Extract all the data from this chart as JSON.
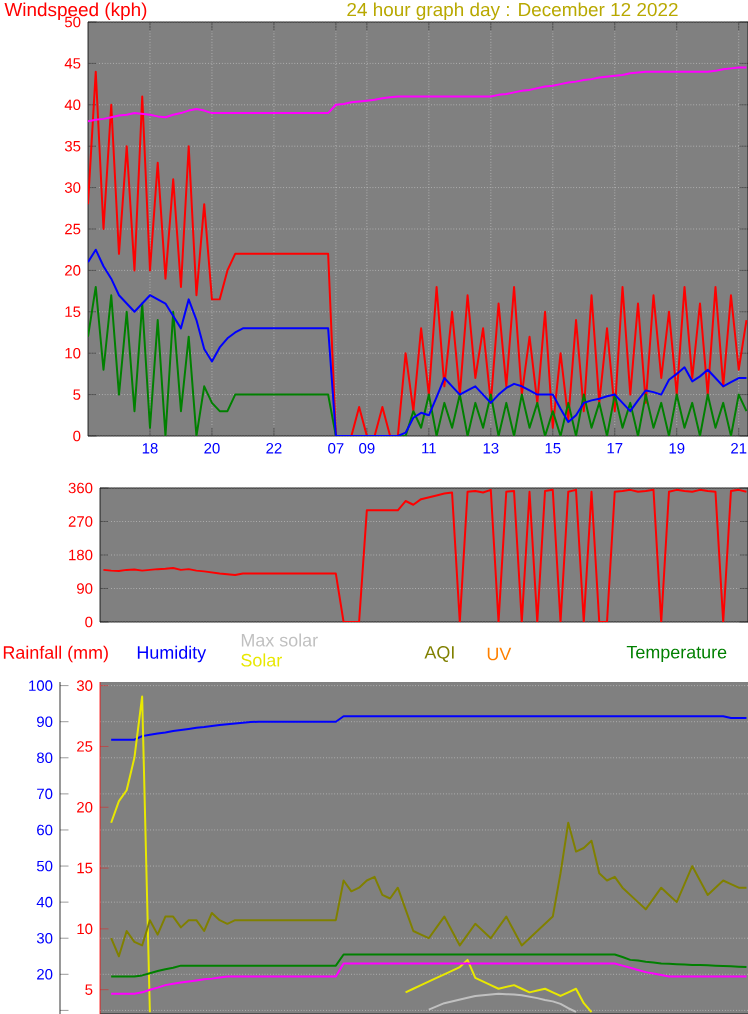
{
  "chart_data": [
    {
      "type": "line",
      "title": "24 hour graph day : December 12 2022",
      "ylabel": "Windspeed (kph)",
      "categories": [
        null,
        null,
        null,
        null,
        null,
        null,
        null,
        null,
        "18",
        null,
        null,
        null,
        null,
        null,
        null,
        null,
        "20",
        null,
        null,
        null,
        null,
        null,
        null,
        null,
        "22",
        null,
        null,
        null,
        null,
        null,
        null,
        null,
        "07",
        null,
        null,
        null,
        "09",
        null,
        null,
        null,
        null,
        null,
        null,
        null,
        "11",
        null,
        null,
        null,
        null,
        null,
        null,
        null,
        "13",
        null,
        null,
        null,
        null,
        null,
        null,
        null,
        "15",
        null,
        null,
        null,
        null,
        null,
        null,
        null,
        "17",
        null,
        null,
        null,
        null,
        null,
        null,
        null,
        "19",
        null,
        null,
        null,
        null,
        null,
        null,
        null,
        "21",
        null
      ],
      "ylim": [
        0,
        50
      ],
      "yticks": [
        0,
        5,
        10,
        15,
        20,
        25,
        30,
        35,
        40,
        45,
        50
      ],
      "grid": true,
      "series": [
        {
          "color": "#ff0000",
          "values": [
            28,
            44,
            25,
            40,
            22,
            35,
            20,
            41,
            20,
            33,
            19,
            31,
            18,
            35,
            17,
            28,
            16.5,
            16.5,
            20,
            22,
            22,
            22,
            22,
            22,
            22,
            22,
            22,
            22,
            22,
            22,
            22,
            22,
            0,
            0,
            0,
            3.5,
            0,
            0,
            3.5,
            0,
            0,
            10,
            3,
            13,
            5,
            18,
            6,
            15,
            5,
            17,
            7,
            13,
            4,
            16,
            6,
            18,
            5,
            12,
            4,
            15,
            1,
            10,
            2,
            14,
            3,
            17,
            4,
            13,
            3,
            18,
            5,
            16,
            4,
            17,
            7,
            15,
            5,
            18,
            7,
            16,
            5,
            18,
            6,
            17,
            8,
            14
          ]
        },
        {
          "color": "#008000",
          "values": [
            12,
            18,
            8,
            17,
            5,
            15,
            3,
            16,
            1,
            14,
            0,
            15,
            3,
            12,
            0,
            6,
            4,
            3,
            3,
            5,
            5,
            5,
            5,
            5,
            5,
            5,
            5,
            5,
            5,
            5,
            5,
            5,
            0,
            0,
            0,
            0,
            0,
            0,
            0,
            0,
            0,
            0,
            3,
            1,
            5,
            0,
            4,
            1,
            5,
            0,
            4,
            1,
            5,
            0,
            4,
            0,
            5,
            1,
            4,
            0,
            3,
            0,
            4,
            0,
            5,
            1,
            4,
            0,
            5,
            1,
            4,
            0,
            5,
            1,
            4,
            0,
            5,
            1,
            4,
            0,
            5,
            1,
            4,
            0,
            5,
            3
          ]
        },
        {
          "color": "#0000ff",
          "values": [
            21,
            22.5,
            20.5,
            19,
            17,
            16,
            15,
            16,
            17,
            16.5,
            16,
            14.5,
            13,
            16.5,
            14,
            10.5,
            9,
            10.7,
            11.8,
            12.5,
            13,
            13,
            13,
            13,
            13,
            13,
            13,
            13,
            13,
            13,
            13,
            13,
            0,
            0,
            0,
            0,
            0,
            0,
            0,
            0,
            0,
            0.4,
            2.2,
            2.8,
            2.5,
            4.7,
            7,
            6,
            5,
            5.5,
            6,
            5,
            4,
            5,
            5.8,
            6.3,
            6,
            5.5,
            5,
            5,
            5,
            3.3,
            1.7,
            2.5,
            4,
            4.3,
            4.5,
            4.8,
            5,
            4,
            3,
            4.3,
            5.5,
            5.3,
            5,
            6.8,
            7.5,
            8.3,
            6.6,
            7.2,
            8,
            7,
            6,
            6.5,
            7,
            7
          ]
        },
        {
          "color": "#ff00ff",
          "values": [
            38,
            38.2,
            38.3,
            38.5,
            38.7,
            38.8,
            39,
            38.9,
            38.8,
            38.6,
            38.5,
            38.8,
            39,
            39.3,
            39.5,
            39.3,
            39,
            39,
            39,
            39,
            39,
            39,
            39,
            39,
            39,
            39,
            39,
            39,
            39,
            39,
            39,
            39,
            40,
            40.1,
            40.3,
            40.4,
            40.5,
            40.6,
            40.8,
            40.9,
            41,
            41,
            41,
            41,
            41,
            41,
            41,
            41,
            41,
            41,
            41,
            41,
            41,
            41.2,
            41.3,
            41.5,
            41.7,
            41.8,
            42,
            42.2,
            42.3,
            42.5,
            42.7,
            42.8,
            43,
            43.1,
            43.3,
            43.4,
            43.5,
            43.6,
            43.8,
            43.9,
            44,
            44,
            44,
            44,
            44,
            44,
            44,
            44,
            44,
            44.1,
            44.3,
            44.4,
            44.5,
            44.5
          ]
        }
      ]
    },
    {
      "type": "line",
      "ylim": [
        0,
        360
      ],
      "yticks": [
        0,
        90,
        180,
        270,
        360
      ],
      "grid": "y",
      "tick_labels": "y",
      "categories": [
        null,
        null,
        null,
        null,
        null,
        null,
        null,
        null,
        null,
        null,
        null,
        null,
        null,
        null,
        null,
        null,
        null,
        null,
        null,
        null,
        null,
        null,
        null,
        null,
        null,
        null,
        null,
        null,
        null,
        null,
        null,
        null,
        null,
        null,
        null,
        null,
        null,
        null,
        null,
        null,
        null,
        null,
        null,
        null,
        null,
        null,
        null,
        null,
        null,
        null,
        null,
        null,
        null,
        null,
        null,
        null,
        null,
        null,
        null,
        null,
        null,
        null,
        null,
        null,
        null,
        null,
        null,
        null,
        null,
        null,
        null,
        null,
        null,
        null,
        null,
        null,
        null,
        null,
        null,
        null,
        null,
        null,
        null,
        null
      ],
      "series": [
        {
          "color": "#ff0000",
          "values": [
            140,
            138,
            137,
            140,
            141,
            138,
            140,
            142,
            143,
            145,
            140,
            142,
            138,
            136,
            133,
            130,
            128,
            126,
            130,
            130,
            130,
            130,
            130,
            130,
            130,
            130,
            130,
            130,
            130,
            130,
            130,
            0,
            0,
            0,
            300,
            300,
            300,
            300,
            300,
            325,
            315,
            330,
            335,
            340,
            345,
            348,
            0,
            350,
            352,
            348,
            355,
            0,
            350,
            352,
            0,
            350,
            0,
            352,
            355,
            0,
            350,
            355,
            0,
            350,
            0,
            0,
            350,
            352,
            355,
            350,
            352,
            355,
            0,
            350,
            355,
            352,
            350,
            355,
            352,
            350,
            0,
            352,
            355,
            350
          ]
        }
      ]
    },
    {
      "type": "line",
      "ylim": [
        9,
        101
      ],
      "yticks": [
        {
          "value": 10,
          "label": null
        },
        20,
        30,
        40,
        50,
        60,
        70,
        80,
        90,
        100
      ],
      "y2lim": [
        3,
        30.3
      ],
      "y2ticks": [
        5,
        10,
        15,
        20,
        25,
        30
      ],
      "grid": "y",
      "tick_labels": "y",
      "annotations": [
        "Rainfall (mm)",
        "UV"
      ],
      "categories": [
        null,
        null,
        null,
        null,
        null,
        null,
        null,
        null,
        null,
        null,
        null,
        null,
        null,
        null,
        null,
        null,
        null,
        null,
        null,
        null,
        null,
        null,
        null,
        null,
        null,
        null,
        null,
        null,
        null,
        null,
        null,
        null,
        null,
        null,
        null,
        null,
        null,
        null,
        null,
        null,
        null,
        null,
        null,
        null,
        null,
        null,
        null,
        null,
        null,
        null,
        null,
        null,
        null,
        null,
        null,
        null,
        null,
        null,
        null,
        null,
        null,
        null,
        null,
        null,
        null,
        null,
        null,
        null,
        null,
        null,
        null,
        null,
        null,
        null,
        null,
        null,
        null,
        null,
        null,
        null,
        null,
        null,
        null,
        null
      ],
      "series": [
        {
          "name": "Humidity",
          "color": "#0000ff",
          "values": [
            null,
            85,
            85,
            85,
            85,
            86,
            86.4,
            86.7,
            87,
            87.4,
            87.7,
            88,
            88.3,
            88.5,
            88.8,
            89.1,
            89.3,
            89.5,
            89.7,
            89.9,
            90,
            90,
            90,
            90,
            90,
            90,
            90,
            90,
            90,
            90,
            90,
            91.5,
            91.5,
            91.5,
            91.5,
            91.5,
            91.5,
            91.5,
            91.5,
            91.5,
            91.5,
            91.5,
            91.5,
            91.5,
            91.5,
            91.5,
            91.5,
            91.5,
            91.5,
            91.5,
            91.5,
            91.5,
            91.5,
            91.5,
            91.5,
            91.5,
            91.5,
            91.5,
            91.5,
            91.5,
            91.5,
            91.5,
            91.5,
            91.5,
            91.5,
            91.5,
            91.5,
            91.5,
            91.5,
            91.5,
            91.5,
            91.5,
            91.5,
            91.5,
            91.5,
            91.5,
            91.5,
            91.5,
            91.5,
            91.5,
            91.5,
            91,
            91,
            91
          ]
        },
        {
          "name": "Max solar",
          "color": "#c0c0c0",
          "values": [
            null,
            null,
            null,
            null,
            null,
            null,
            null,
            null,
            null,
            null,
            null,
            null,
            null,
            null,
            null,
            null,
            null,
            null,
            null,
            null,
            null,
            null,
            null,
            null,
            null,
            null,
            null,
            null,
            null,
            null,
            null,
            null,
            null,
            null,
            null,
            null,
            null,
            null,
            null,
            null,
            null,
            null,
            10.2,
            11.1,
            12,
            12.5,
            13,
            13.5,
            14,
            14.2,
            14.4,
            14.6,
            14.5,
            14.4,
            14.2,
            13.8,
            13.4,
            12.9,
            12.5,
            11.8,
            10.6,
            9.6,
            null,
            null,
            null,
            null,
            null,
            null,
            null,
            null,
            null,
            null,
            null,
            null,
            null,
            null,
            null,
            null,
            null,
            null,
            null,
            null,
            null,
            null
          ]
        },
        {
          "name": "Solar",
          "color": "#e8e800",
          "values": [
            null,
            62,
            68,
            71,
            80,
            97,
            9.5,
            null,
            null,
            null,
            null,
            null,
            null,
            null,
            null,
            null,
            null,
            null,
            null,
            null,
            null,
            null,
            null,
            null,
            null,
            null,
            null,
            null,
            null,
            null,
            null,
            null,
            null,
            null,
            null,
            null,
            null,
            null,
            null,
            15,
            16,
            17,
            18,
            19,
            20,
            21,
            22,
            24,
            19,
            18,
            17,
            16,
            16.5,
            17,
            16,
            15,
            15.5,
            16,
            15,
            14,
            15,
            16,
            12,
            9.5,
            null,
            null,
            null,
            null,
            null,
            null,
            null,
            null,
            null,
            null,
            null,
            null,
            null,
            null,
            null,
            null,
            null,
            null,
            null,
            null
          ]
        },
        {
          "name": "AQI",
          "color": "#808000",
          "values": [
            null,
            30,
            25,
            32,
            29,
            28,
            35,
            31,
            36,
            36,
            33,
            35,
            35,
            32,
            37,
            35,
            34,
            35,
            35,
            35,
            35,
            35,
            35,
            35,
            35,
            35,
            35,
            35,
            35,
            35,
            35,
            46,
            43,
            44,
            46,
            47,
            42,
            41,
            44,
            38,
            32,
            31,
            30,
            33,
            36,
            32,
            28,
            31,
            34,
            32,
            30,
            33,
            36,
            32,
            28,
            30,
            32,
            34,
            36,
            48,
            62,
            54,
            55,
            57,
            48,
            46,
            47,
            44,
            42,
            40,
            38,
            41,
            44,
            42,
            40,
            45,
            50,
            46,
            42,
            44,
            46,
            45,
            44,
            44
          ]
        },
        {
          "name": "Temperature",
          "color": "#008000",
          "values": [
            null,
            19.4,
            19.4,
            19.4,
            19.4,
            19.7,
            20.3,
            20.9,
            21.4,
            21.8,
            22.4,
            22.4,
            22.4,
            22.4,
            22.4,
            22.4,
            22.4,
            22.4,
            22.4,
            22.4,
            22.4,
            22.4,
            22.4,
            22.4,
            22.4,
            22.4,
            22.4,
            22.4,
            22.4,
            22.4,
            22.4,
            25.5,
            25.5,
            25.5,
            25.5,
            25.5,
            25.5,
            25.5,
            25.5,
            25.5,
            25.5,
            25.5,
            25.5,
            25.5,
            25.5,
            25.5,
            25.5,
            25.5,
            25.5,
            25.5,
            25.5,
            25.5,
            25.5,
            25.5,
            25.5,
            25.5,
            25.5,
            25.5,
            25.5,
            25.5,
            25.5,
            25.5,
            25.5,
            25.5,
            25.5,
            25.5,
            25.5,
            24.8,
            24,
            23.8,
            23.5,
            23.3,
            23,
            22.9,
            22.8,
            22.7,
            22.6,
            22.6,
            22.5,
            22.4,
            22.3,
            22.2,
            22.1,
            22
          ]
        },
        {
          "color": "#ff00ff",
          "values": [
            null,
            14.6,
            14.6,
            14.6,
            14.6,
            15,
            15.7,
            16.3,
            17,
            17.4,
            17.7,
            18,
            18.3,
            18.6,
            18.8,
            19.1,
            19.4,
            19.4,
            19.4,
            19.4,
            19.4,
            19.4,
            19.4,
            19.4,
            19.4,
            19.4,
            19.4,
            19.4,
            19.4,
            19.4,
            19.4,
            23,
            23,
            23,
            23,
            23,
            23,
            23,
            23,
            23,
            23,
            23,
            23,
            23,
            23,
            23,
            23,
            23,
            23,
            23,
            23,
            23,
            23,
            23,
            23,
            23,
            23,
            23,
            23,
            23,
            23,
            23,
            23,
            23,
            23,
            23,
            23,
            22.4,
            21.8,
            21.2,
            20.6,
            20.2,
            19.8,
            19.4,
            19.4,
            19.4,
            19.4,
            19.4,
            19.4,
            19.4,
            19.4,
            19.4,
            19.4,
            19.4
          ]
        }
      ]
    }
  ]
}
